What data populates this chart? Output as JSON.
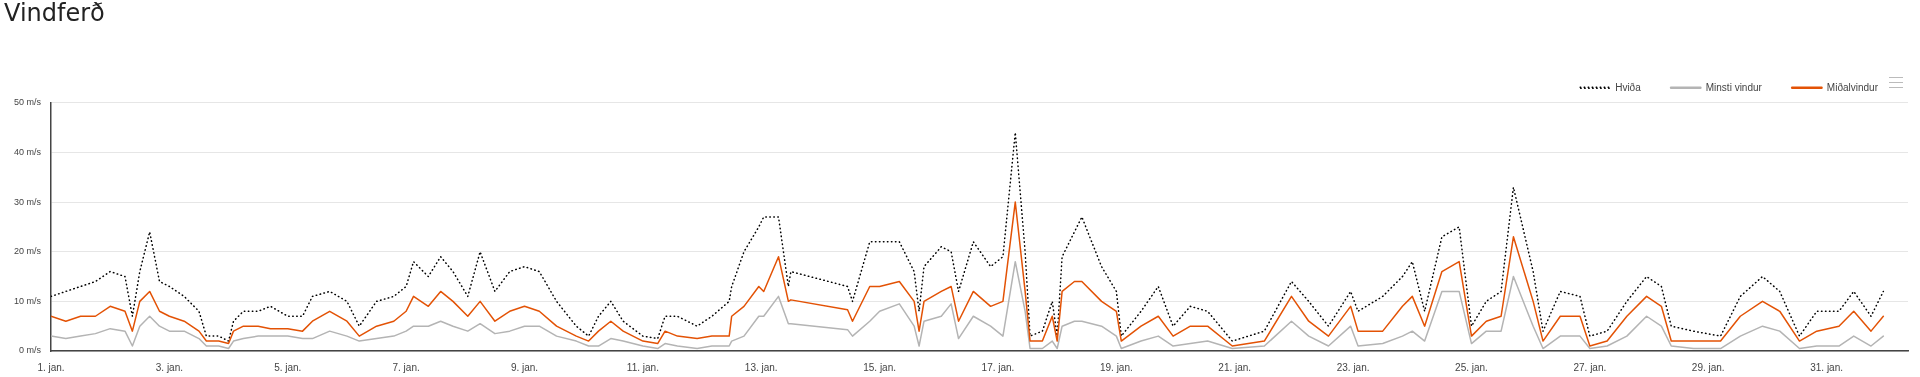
{
  "chart_data": {
    "type": "line",
    "title": "Vindferð",
    "x": [
      "--01-01T00:00",
      "--01-01T06:00",
      "--01-01T12:00",
      "--01-01T18:00",
      "--01-02T00:00",
      "--01-02T06:00",
      "--01-02T09:00",
      "--01-02T12:00",
      "--01-02T16:00",
      "--01-02T20:00",
      "--01-03T00:00",
      "--01-03T06:00",
      "--01-03T12:00",
      "--01-03T15:00",
      "--01-03T20:00",
      "--01-04T00:00",
      "--01-04T02:00",
      "--01-04T06:00",
      "--01-04T12:00",
      "--01-04T17:00",
      "--01-05T00:00",
      "--01-05T06:00",
      "--01-05T10:00",
      "--01-05T17:00",
      "--01-06T00:00",
      "--01-06T05:00",
      "--01-06T12:00",
      "--01-06T19:00",
      "--01-07T00:00",
      "--01-07T03:00",
      "--01-07T09:00",
      "--01-07T14:00",
      "--01-07T19:00",
      "--01-08T01:00",
      "--01-08T06:00",
      "--01-08T12:00",
      "--01-08T18:00",
      "--01-09T00:00",
      "--01-09T06:00",
      "--01-09T13:00",
      "--01-09T21:00",
      "--01-10T02:00",
      "--01-10T06:00",
      "--01-10T11:00",
      "--01-10T16:00",
      "--01-11T00:00",
      "--01-11T06:00",
      "--01-11T09:00",
      "--01-11T14:00",
      "--01-11T22:00",
      "--01-12T04:00",
      "--01-12T11:00",
      "--01-12T12:00",
      "--01-12T17:00",
      "--01-12T23:00",
      "--01-13T01:00",
      "--01-13T07:00",
      "--01-13T11:00",
      "--01-13T12:00",
      "--01-14T11:00",
      "--01-14T13:00",
      "--01-14T20:00",
      "--01-15T00:00",
      "--01-15T08:00",
      "--01-15T14:00",
      "--01-15T16:00",
      "--01-15T18:00",
      "--01-16T01:00",
      "--01-16T05:00",
      "--01-16T08:00",
      "--01-16T14:00",
      "--01-16T21:00",
      "--01-17T02:00",
      "--01-17T07:00",
      "--01-17T11:00",
      "--01-17T13:00",
      "--01-17T18:00",
      "--01-17T22:00",
      "--01-18T00:00",
      "--01-18T02:00",
      "--01-18T07:00",
      "--01-18T10:00",
      "--01-18T18:00",
      "--01-19T00:00",
      "--01-19T02:00",
      "--01-19T10:00",
      "--01-19T17:00",
      "--01-19T23:00",
      "--01-20T06:00",
      "--01-20T13:00",
      "--01-20T23:00",
      "--01-21T12:00",
      "--01-21T23:00",
      "--01-22T06:00",
      "--01-22T14:00",
      "--01-22T23:00",
      "--01-23T02:00",
      "--01-23T12:00",
      "--01-23T20:00",
      "--01-24T00:00",
      "--01-24T05:00",
      "--01-24T12:00",
      "--01-24T19:00",
      "--01-25T00:00",
      "--01-25T06:00",
      "--01-25T12:00",
      "--01-25T17:00",
      "--01-26T01:00",
      "--01-26T05:00",
      "--01-26T12:00",
      "--01-26T20:00",
      "--01-27T00:00",
      "--01-27T07:00",
      "--01-27T15:00",
      "--01-27T23:00",
      "--01-28T05:00",
      "--01-28T09:00",
      "--01-28T18:00",
      "--01-29T05:00",
      "--01-29T13:00",
      "--01-29T22:00",
      "--01-30T05:00",
      "--01-30T13:00",
      "--01-30T20:00",
      "--01-31T05:00",
      "--01-31T11:00",
      "--01-31T18:00",
      "--01-31T23:00"
    ],
    "series": [
      {
        "name": "Hviða",
        "color": "#000000",
        "line_style": "dotted",
        "values": [
          11,
          12,
          13,
          14,
          16,
          15,
          7,
          16,
          24,
          14,
          13,
          11,
          8,
          3,
          3,
          2,
          6,
          8,
          8,
          9,
          7,
          7,
          11,
          12,
          10,
          5,
          10,
          11,
          13,
          18,
          15,
          19,
          16,
          11,
          20,
          12,
          16,
          17,
          16,
          10,
          5,
          3,
          7,
          10,
          6,
          3,
          2.5,
          7,
          7,
          5,
          7,
          10,
          13,
          20,
          25,
          27,
          27,
          13,
          16,
          13,
          10,
          22,
          22,
          22,
          16,
          8,
          17,
          21,
          20,
          12,
          22,
          17,
          19,
          44,
          20,
          3,
          4,
          10,
          3,
          19,
          24,
          27,
          17,
          12,
          3,
          8,
          13,
          5,
          9,
          8,
          2,
          4,
          14,
          10,
          5,
          12,
          8,
          11,
          15,
          18,
          8,
          23,
          25,
          5,
          10,
          12,
          33,
          16,
          4,
          12,
          11,
          3,
          4,
          10,
          15,
          13,
          5,
          4,
          3,
          11,
          15,
          12,
          3,
          8,
          8,
          12,
          7,
          12
        ]
      },
      {
        "name": "Minsti vindur",
        "color": "#b4b4b4",
        "line_style": "solid",
        "values": [
          3,
          2.5,
          3,
          3.5,
          4.5,
          4,
          1,
          5,
          7,
          5,
          4,
          4,
          2.5,
          1,
          1,
          0.5,
          2,
          2.5,
          3,
          3,
          3,
          2.5,
          2.5,
          4,
          3,
          2,
          2.5,
          3,
          4,
          5,
          5,
          6,
          5,
          4,
          5.5,
          3.5,
          4,
          5,
          5,
          3,
          2,
          1,
          1,
          2.5,
          2,
          1,
          0.5,
          1.5,
          1,
          0.5,
          1,
          1,
          2,
          3,
          7,
          7,
          11,
          5.5,
          5.5,
          4.3,
          3,
          6,
          8,
          9.5,
          5,
          1,
          6,
          7,
          9.5,
          2.5,
          7,
          5,
          3,
          18,
          8,
          0.5,
          0.5,
          2,
          0.5,
          5,
          6,
          6,
          5,
          3,
          0.5,
          2,
          3,
          1,
          1.5,
          2,
          0.5,
          1,
          6,
          3,
          1,
          5,
          1,
          1.5,
          3,
          4,
          2,
          12,
          12,
          1.5,
          4,
          4,
          15,
          5,
          0.5,
          3,
          3,
          0.5,
          1,
          3,
          7,
          5,
          1,
          0.5,
          0.5,
          3,
          5,
          4,
          0.5,
          1,
          1,
          3,
          1,
          3
        ]
      },
      {
        "name": "Miðalvindur",
        "color": "#e35205",
        "line_style": "solid",
        "values": [
          7,
          6,
          7,
          7,
          9,
          8,
          4,
          10,
          12,
          8,
          7,
          6,
          4,
          2,
          2,
          1.5,
          4,
          5,
          5,
          4.5,
          4.5,
          4,
          6,
          8,
          6,
          3,
          5,
          6,
          8,
          11,
          9,
          12,
          10,
          7,
          10,
          6,
          8,
          9,
          8,
          5,
          3,
          2,
          4,
          6,
          4,
          2,
          1.5,
          4,
          3,
          2.5,
          3,
          3,
          7,
          9,
          13,
          12,
          19,
          10,
          10.3,
          8.3,
          6,
          13,
          13,
          14,
          10,
          4,
          10,
          12,
          13,
          6,
          12,
          9,
          10,
          30,
          12,
          2,
          2,
          7,
          2,
          12,
          14,
          14,
          10,
          8,
          2,
          5,
          7,
          3,
          5,
          5,
          1,
          2,
          11,
          6,
          3,
          9,
          4,
          4,
          9,
          11,
          5,
          16,
          18,
          3,
          6,
          7,
          23,
          10,
          2,
          7,
          7,
          1,
          2,
          7,
          11,
          9,
          2,
          2,
          2,
          7,
          10,
          8,
          2,
          4,
          5,
          8,
          4,
          7
        ]
      }
    ],
    "xlim": [
      "--01-01T00:00",
      "--02-01T09:00"
    ],
    "xticks": [
      {
        "value": "--01-01",
        "label": "1. jan."
      },
      {
        "value": "--01-03",
        "label": "3. jan."
      },
      {
        "value": "--01-05",
        "label": "5. jan."
      },
      {
        "value": "--01-07",
        "label": "7. jan."
      },
      {
        "value": "--01-09",
        "label": "9. jan."
      },
      {
        "value": "--01-11",
        "label": "11. jan."
      },
      {
        "value": "--01-13",
        "label": "13. jan."
      },
      {
        "value": "--01-15",
        "label": "15. jan."
      },
      {
        "value": "--01-17",
        "label": "17. jan."
      },
      {
        "value": "--01-19",
        "label": "19. jan."
      },
      {
        "value": "--01-21",
        "label": "21. jan."
      },
      {
        "value": "--01-23",
        "label": "23. jan."
      },
      {
        "value": "--01-25",
        "label": "25. jan."
      },
      {
        "value": "--01-27",
        "label": "27. jan."
      },
      {
        "value": "--01-29",
        "label": "29. jan."
      },
      {
        "value": "--01-31",
        "label": "31. jan."
      }
    ],
    "ylim": [
      0,
      50
    ],
    "yticks": [
      {
        "value": 0,
        "label": "0 m/s"
      },
      {
        "value": 10,
        "label": "10 m/s"
      },
      {
        "value": 20,
        "label": "20 m/s"
      },
      {
        "value": 30,
        "label": "30 m/s"
      },
      {
        "value": 40,
        "label": "40 m/s"
      },
      {
        "value": 50,
        "label": "50 m/s"
      }
    ],
    "grid": "y",
    "legend": "top right",
    "marker": "none"
  }
}
